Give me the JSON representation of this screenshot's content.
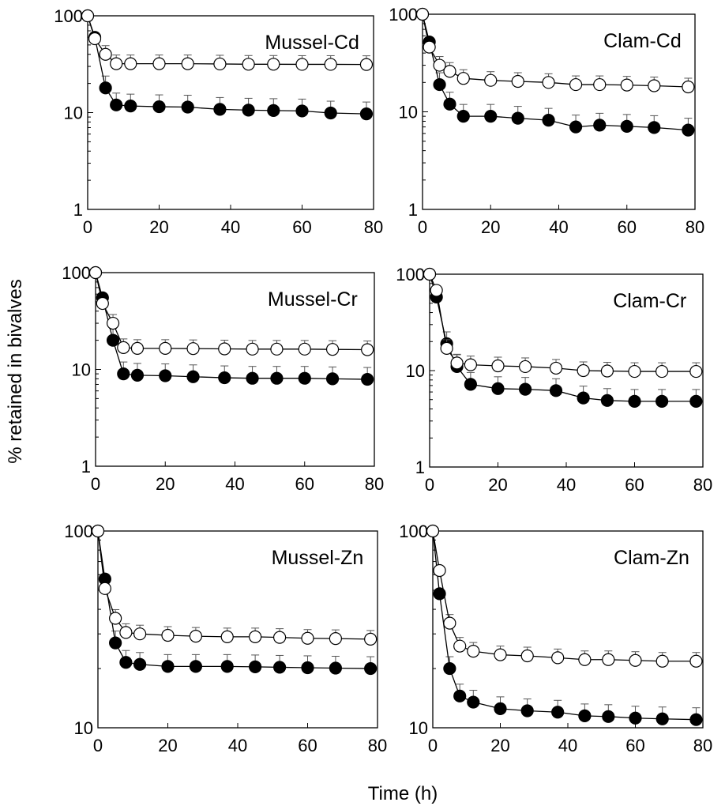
{
  "figure": {
    "ylabel": "% retained in bivalves",
    "xlabel": "Time (h)"
  },
  "chart_data": [
    {
      "type": "line",
      "title": "Mussel-Cd",
      "yscale": "log",
      "ylim": [
        1,
        100
      ],
      "xlim": [
        0,
        80
      ],
      "xticks": [
        0,
        20,
        40,
        60,
        80
      ],
      "yticks": [
        1,
        10,
        100
      ],
      "x": [
        0,
        2,
        5,
        8,
        12,
        20,
        28,
        37,
        45,
        52,
        60,
        68,
        78
      ],
      "series": [
        {
          "marker": "filled",
          "values": [
            100,
            60,
            18,
            12,
            11.7,
            11.5,
            11.4,
            10.8,
            10.6,
            10.5,
            10.4,
            9.9,
            9.7
          ]
        },
        {
          "marker": "open",
          "values": [
            100,
            58,
            40,
            32,
            32,
            32,
            32,
            31.8,
            31.6,
            31.6,
            31.5,
            31.5,
            31.4
          ]
        }
      ]
    },
    {
      "type": "line",
      "title": "Clam-Cd",
      "yscale": "log",
      "ylim": [
        1,
        100
      ],
      "xlim": [
        0,
        80
      ],
      "xticks": [
        0,
        20,
        40,
        60,
        80
      ],
      "yticks": [
        1,
        10,
        100
      ],
      "x": [
        0,
        2,
        5,
        8,
        12,
        20,
        28,
        37,
        45,
        52,
        60,
        68,
        78
      ],
      "series": [
        {
          "marker": "filled",
          "values": [
            100,
            52,
            19,
            12,
            9,
            9,
            8.6,
            8.2,
            7,
            7.3,
            7.1,
            6.9,
            6.5
          ]
        },
        {
          "marker": "open",
          "values": [
            100,
            46,
            30,
            26,
            22,
            21,
            20.5,
            20,
            19,
            19,
            18.8,
            18.5,
            18
          ]
        }
      ]
    },
    {
      "type": "line",
      "title": "Mussel-Cr",
      "yscale": "log",
      "ylim": [
        1,
        100
      ],
      "xlim": [
        0,
        80
      ],
      "xticks": [
        0,
        20,
        40,
        60,
        80
      ],
      "yticks": [
        1,
        10,
        100
      ],
      "x": [
        0,
        2,
        5,
        8,
        12,
        20,
        28,
        37,
        45,
        52,
        60,
        68,
        78
      ],
      "series": [
        {
          "marker": "filled",
          "values": [
            100,
            55,
            20,
            9,
            8.7,
            8.6,
            8.4,
            8.2,
            8.1,
            8.1,
            8.1,
            8,
            7.9
          ]
        },
        {
          "marker": "open",
          "values": [
            100,
            48,
            30,
            16.8,
            16.5,
            16.5,
            16.4,
            16.3,
            16.2,
            16.2,
            16.2,
            16.1,
            16
          ]
        }
      ]
    },
    {
      "type": "line",
      "title": "Clam-Cr",
      "yscale": "log",
      "ylim": [
        1,
        100
      ],
      "xlim": [
        0,
        80
      ],
      "xticks": [
        0,
        20,
        40,
        60,
        80
      ],
      "yticks": [
        1,
        10,
        100
      ],
      "x": [
        0,
        2,
        5,
        8,
        12,
        20,
        28,
        37,
        45,
        52,
        60,
        68,
        78
      ],
      "series": [
        {
          "marker": "filled",
          "values": [
            100,
            58,
            19,
            11,
            7.2,
            6.5,
            6.4,
            6.2,
            5.2,
            4.9,
            4.8,
            4.8,
            4.8
          ]
        },
        {
          "marker": "open",
          "values": [
            100,
            68,
            17,
            12,
            11.5,
            11.2,
            11,
            10.6,
            10,
            9.9,
            9.8,
            9.8,
            9.8
          ]
        }
      ]
    },
    {
      "type": "line",
      "title": "Mussel-Zn",
      "yscale": "log",
      "ylim": [
        10,
        100
      ],
      "xlim": [
        0,
        80
      ],
      "xticks": [
        0,
        20,
        40,
        60,
        80
      ],
      "yticks": [
        10,
        100
      ],
      "x": [
        0,
        2,
        5,
        8,
        12,
        20,
        28,
        37,
        45,
        52,
        60,
        68,
        78
      ],
      "series": [
        {
          "marker": "filled",
          "values": [
            100,
            57,
            27,
            21.5,
            21,
            20.5,
            20.5,
            20.5,
            20.4,
            20.3,
            20.2,
            20.1,
            20
          ]
        },
        {
          "marker": "open",
          "values": [
            100,
            51,
            36,
            30.5,
            30,
            29.5,
            29.2,
            29,
            29,
            28.8,
            28.5,
            28.4,
            28.2
          ]
        }
      ]
    },
    {
      "type": "line",
      "title": "Clam-Zn",
      "yscale": "log",
      "ylim": [
        10,
        100
      ],
      "xlim": [
        0,
        80
      ],
      "xticks": [
        0,
        20,
        40,
        60,
        80
      ],
      "yticks": [
        10,
        100
      ],
      "x": [
        0,
        2,
        5,
        8,
        12,
        20,
        28,
        37,
        45,
        52,
        60,
        68,
        78
      ],
      "series": [
        {
          "marker": "filled",
          "values": [
            100,
            48,
            20,
            14.5,
            13.5,
            12.5,
            12.2,
            12,
            11.5,
            11.4,
            11.2,
            11.1,
            11
          ]
        },
        {
          "marker": "open",
          "values": [
            100,
            63,
            34,
            26,
            24.5,
            23.5,
            23.2,
            22.7,
            22.2,
            22.2,
            22,
            21.8,
            21.8
          ]
        }
      ]
    }
  ]
}
